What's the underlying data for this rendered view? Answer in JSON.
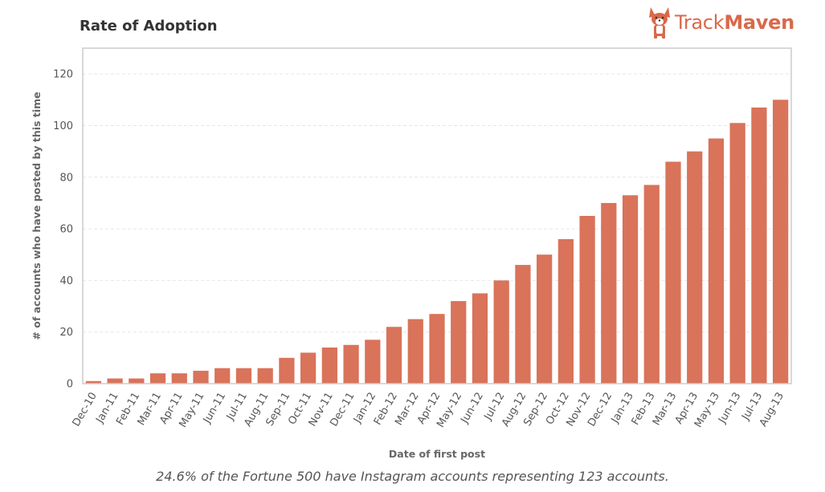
{
  "header": {
    "title": "Rate of Adoption",
    "logo_text_light": "Track",
    "logo_text_bold": "Maven",
    "logo_icon": "corgi-dog-icon"
  },
  "caption": "24.6% of the Fortune 500 have Instagram accounts representing 123 accounts.",
  "colors": {
    "bar": "#d9735a",
    "brand": "#d9694a",
    "grid": "#e6e6e6",
    "frame": "#cccccc"
  },
  "chart_data": {
    "type": "bar",
    "title": "Rate of Adoption",
    "xlabel": "Date of first post",
    "ylabel": "# of accounts who have posted by this time",
    "ylim": [
      0,
      130
    ],
    "yticks": [
      0,
      20,
      40,
      60,
      80,
      100,
      120
    ],
    "grid": true,
    "categories": [
      "Dec-10",
      "Jan-11",
      "Feb-11",
      "Mar-11",
      "Apr-11",
      "May-11",
      "Jun-11",
      "Jul-11",
      "Aug-11",
      "Sep-11",
      "Oct-11",
      "Nov-11",
      "Dec-11",
      "Jan-12",
      "Feb-12",
      "Mar-12",
      "Apr-12",
      "May-12",
      "Jun-12",
      "Jul-12",
      "Aug-12",
      "Sep-12",
      "Oct-12",
      "Nov-12",
      "Dec-12",
      "Jan-13",
      "Feb-13",
      "Mar-13",
      "Apr-13",
      "May-13",
      "Jun-13",
      "Jul-13",
      "Aug-13"
    ],
    "values": [
      1,
      2,
      2,
      4,
      4,
      5,
      6,
      6,
      6,
      10,
      12,
      14,
      15,
      17,
      22,
      25,
      27,
      32,
      35,
      40,
      46,
      50,
      56,
      65,
      70,
      73,
      77,
      86,
      90,
      95,
      101,
      107,
      110
    ]
  }
}
